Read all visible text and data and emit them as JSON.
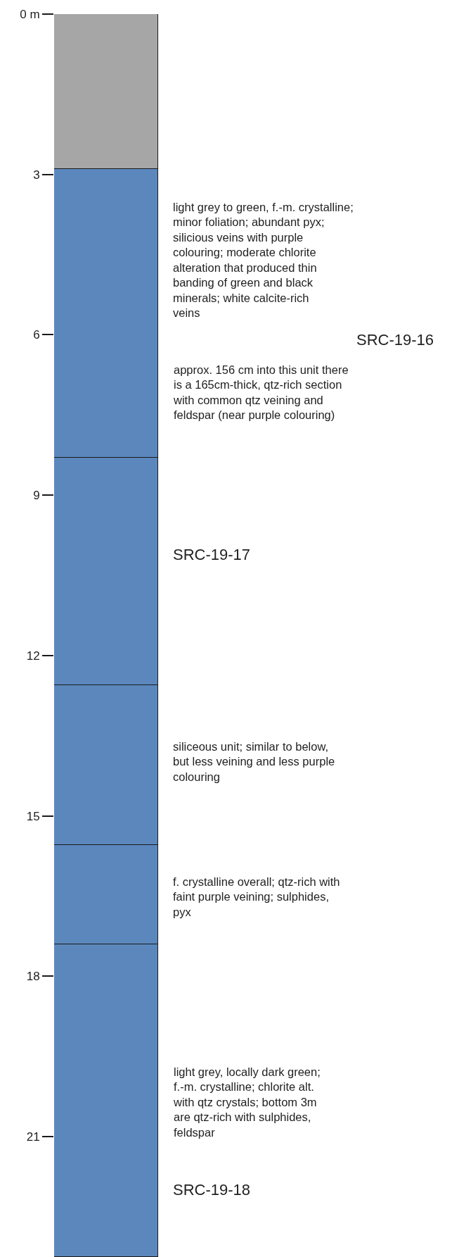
{
  "chart_data": {
    "type": "bar",
    "stacked": true,
    "categories": [
      null
    ],
    "series": [
      {
        "color": "#a5a6a5",
        "values": [
          2.9
        ]
      },
      {
        "color": "#5b87bd",
        "values": [
          5.4
        ]
      },
      {
        "color": "#5b87bd",
        "values": [
          4.25
        ]
      },
      {
        "color": "#5b87bd",
        "values": [
          3.0
        ]
      },
      {
        "color": "#5b87bd",
        "values": [
          1.85
        ]
      },
      {
        "color": "#5b87bd",
        "values": [
          5.85
        ]
      }
    ],
    "ylim": [
      23.25,
      0
    ],
    "yticks": [
      {
        "value": 0,
        "label": "0 m"
      },
      3,
      6,
      9,
      12,
      15,
      18,
      21
    ],
    "tick_labels": "y",
    "annotations": [
      "light grey to green, f.-m. crystalline;\nminor foliation; abundant pyx;\nsilicious veins with purple\ncolouring; moderate chlorite\nalteration that produced thin\nbanding of green and black\nminerals; white calcite-rich\nveins",
      "SRC-19-16",
      "approx. 156 cm into this unit there\nis a 165cm-thick, qtz-rich section\nwith common qtz veining and\nfeldspar (near purple colouring)",
      "SRC-19-17",
      "siliceous unit; similar to below,\nbut less veining and less purple\ncolouring",
      "f. crystalline overall; qtz-rich with\nfaint purple veining; sulphides,\npyx",
      "light grey, locally dark green;\nf.-m. crystalline; chlorite alt.\nwith qtz crystals; bottom 3m\nare qtz-rich with sulphides,\nfeldspar",
      "SRC-19-18"
    ]
  }
}
